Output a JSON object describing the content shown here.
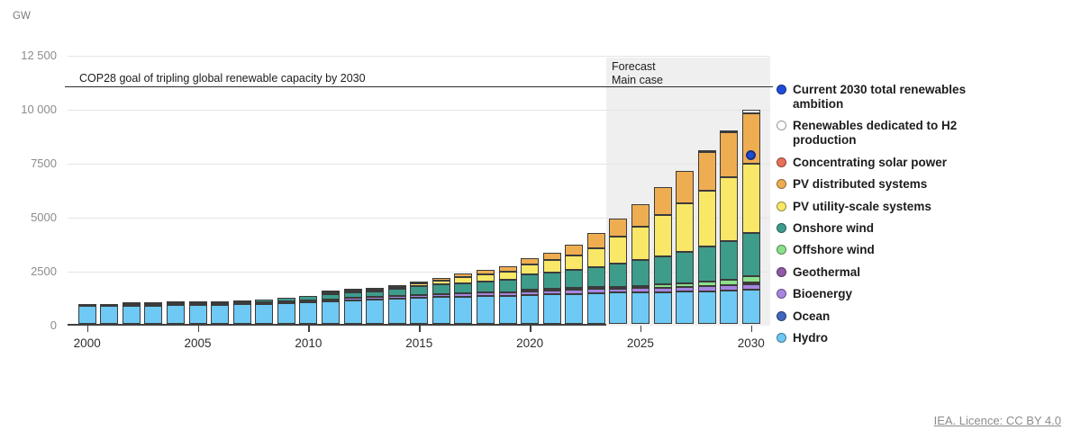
{
  "unit_label": "GW",
  "footer": {
    "licence_text": "IEA. Licence: CC BY 4.0"
  },
  "legend": {
    "items": [
      {
        "label": "Current 2030 total renewables ambition",
        "color": "#1f4bd8",
        "name": "ambition"
      },
      {
        "label": "Renewables dedicated to H2 production",
        "color": "#ffffff",
        "name": "h2"
      },
      {
        "label": "Concentrating solar power",
        "color": "#e8715a",
        "name": "csp"
      },
      {
        "label": "PV distributed systems",
        "color": "#efad52",
        "name": "pv-distributed"
      },
      {
        "label": "PV utility-scale systems",
        "color": "#f9e768",
        "name": "pv-utility"
      },
      {
        "label": "Onshore wind",
        "color": "#3e9c8b",
        "name": "onshore-wind"
      },
      {
        "label": "Offshore wind",
        "color": "#8ce08c",
        "name": "offshore-wind"
      },
      {
        "label": "Geothermal",
        "color": "#9059a9",
        "name": "geothermal"
      },
      {
        "label": "Bioenergy",
        "color": "#a685e0",
        "name": "bioenergy"
      },
      {
        "label": "Ocean",
        "color": "#4166bd",
        "name": "ocean"
      },
      {
        "label": "Hydro",
        "color": "#6ec9f4",
        "name": "hydro"
      }
    ]
  },
  "chart_data": {
    "type": "bar",
    "stacked": true,
    "title": "",
    "xlabel": "",
    "ylabel": "GW",
    "ylim": [
      0,
      12500
    ],
    "x": [
      2000,
      2001,
      2002,
      2003,
      2004,
      2005,
      2006,
      2007,
      2008,
      2009,
      2010,
      2011,
      2012,
      2013,
      2014,
      2015,
      2016,
      2017,
      2018,
      2019,
      2020,
      2021,
      2022,
      2023,
      2024,
      2025,
      2026,
      2027,
      2028,
      2029,
      2030
    ],
    "y_ticks": [
      {
        "label": "12 500",
        "value": 12500
      },
      {
        "label": "10 000",
        "value": 10000
      },
      {
        "label": "7500",
        "value": 7500
      },
      {
        "label": "5000",
        "value": 5000
      },
      {
        "label": "2500",
        "value": 2500
      },
      {
        "label": "0",
        "value": 0
      }
    ],
    "x_ticks": [
      {
        "label": "2000",
        "index": 0
      },
      {
        "label": "2005",
        "index": 5
      },
      {
        "label": "2010",
        "index": 10
      },
      {
        "label": "2015",
        "index": 15
      },
      {
        "label": "2020",
        "index": 20
      },
      {
        "label": "2025",
        "index": 25
      },
      {
        "label": "2030",
        "index": 30
      }
    ],
    "series": [
      {
        "name": "Hydro",
        "color": "#6ec9f4",
        "values": [
          820,
          830,
          840,
          850,
          862,
          875,
          890,
          912,
          938,
          966,
          1010,
          1045,
          1085,
          1120,
          1155,
          1195,
          1230,
          1255,
          1290,
          1305,
          1330,
          1360,
          1392,
          1426,
          1440,
          1455,
          1475,
          1495,
          1515,
          1540,
          1570
        ]
      },
      {
        "name": "Ocean",
        "color": "#4166bd",
        "values": [
          0,
          0,
          0,
          0,
          0,
          0,
          0,
          0,
          0,
          0,
          0,
          0,
          0,
          0,
          0,
          0,
          0,
          0,
          0,
          0,
          0,
          1,
          1,
          1,
          1,
          1,
          1,
          1,
          1,
          1,
          1
        ]
      },
      {
        "name": "Bioenergy",
        "color": "#a685e0",
        "values": [
          40,
          43,
          47,
          51,
          55,
          60,
          65,
          71,
          78,
          85,
          93,
          101,
          109,
          117,
          125,
          132,
          139,
          146,
          152,
          158,
          164,
          170,
          177,
          185,
          192,
          200,
          208,
          216,
          224,
          232,
          250
        ]
      },
      {
        "name": "Geothermal",
        "color": "#9059a9",
        "values": [
          8,
          8,
          8,
          9,
          9,
          9,
          10,
          10,
          10,
          11,
          11,
          11,
          12,
          12,
          13,
          13,
          13,
          14,
          14,
          15,
          15,
          16,
          16,
          16,
          17,
          18,
          19,
          20,
          22,
          26,
          30
        ]
      },
      {
        "name": "Offshore wind",
        "color": "#8ce08c",
        "values": [
          0,
          0,
          0,
          0,
          1,
          1,
          1,
          1,
          1,
          2,
          3,
          4,
          5,
          7,
          8,
          12,
          14,
          19,
          23,
          28,
          34,
          55,
          64,
          73,
          85,
          105,
          135,
          170,
          210,
          250,
          290
        ]
      },
      {
        "name": "Onshore wind",
        "color": "#3e9c8b",
        "values": [
          17,
          24,
          31,
          39,
          47,
          59,
          73,
          92,
          115,
          159,
          178,
          216,
          250,
          283,
          333,
          404,
          451,
          487,
          517,
          565,
          698,
          769,
          836,
          944,
          1060,
          1200,
          1300,
          1450,
          1620,
          1810,
          2010
        ]
      },
      {
        "name": "PV utility-scale systems",
        "color": "#f9e768",
        "values": [
          0,
          0,
          0,
          0,
          0,
          1,
          1,
          2,
          3,
          8,
          20,
          35,
          55,
          85,
          110,
          140,
          190,
          260,
          330,
          400,
          470,
          560,
          700,
          850,
          1250,
          1560,
          1940,
          2250,
          2600,
          2980,
          3200
        ]
      },
      {
        "name": "PV distributed systems",
        "color": "#efad52",
        "values": [
          1,
          1,
          2,
          2,
          3,
          4,
          5,
          7,
          12,
          17,
          20,
          35,
          50,
          70,
          85,
          95,
          110,
          170,
          200,
          250,
          290,
          370,
          480,
          740,
          850,
          1030,
          1260,
          1520,
          1780,
          2080,
          2360
        ]
      },
      {
        "name": "Concentrating solar power",
        "color": "#e8715a",
        "values": [
          0,
          0,
          0,
          0,
          0,
          0,
          0,
          0,
          1,
          1,
          1,
          2,
          3,
          4,
          4,
          5,
          5,
          5,
          6,
          6,
          6,
          6,
          6,
          7,
          7,
          8,
          9,
          10,
          12,
          15,
          20
        ]
      },
      {
        "name": "Renewables dedicated to H2 production",
        "color": "#f4f4f4",
        "values": [
          0,
          0,
          0,
          0,
          0,
          0,
          0,
          0,
          0,
          0,
          0,
          0,
          0,
          0,
          0,
          0,
          0,
          0,
          0,
          0,
          0,
          0,
          0,
          0,
          2,
          5,
          12,
          25,
          45,
          70,
          145
        ]
      }
    ],
    "annotations": {
      "goal_line": {
        "value": 11080,
        "label": "COP28 goal of tripling global renewable capacity by 2030"
      },
      "forecast_region": {
        "start_year": 2024,
        "end_year": 2030,
        "label": "Forecast\nMain case"
      },
      "ambition_point": {
        "year": 2030,
        "value": 7900,
        "label": "Current 2030 total renewables ambition",
        "color": "#1f4bd8"
      }
    }
  }
}
